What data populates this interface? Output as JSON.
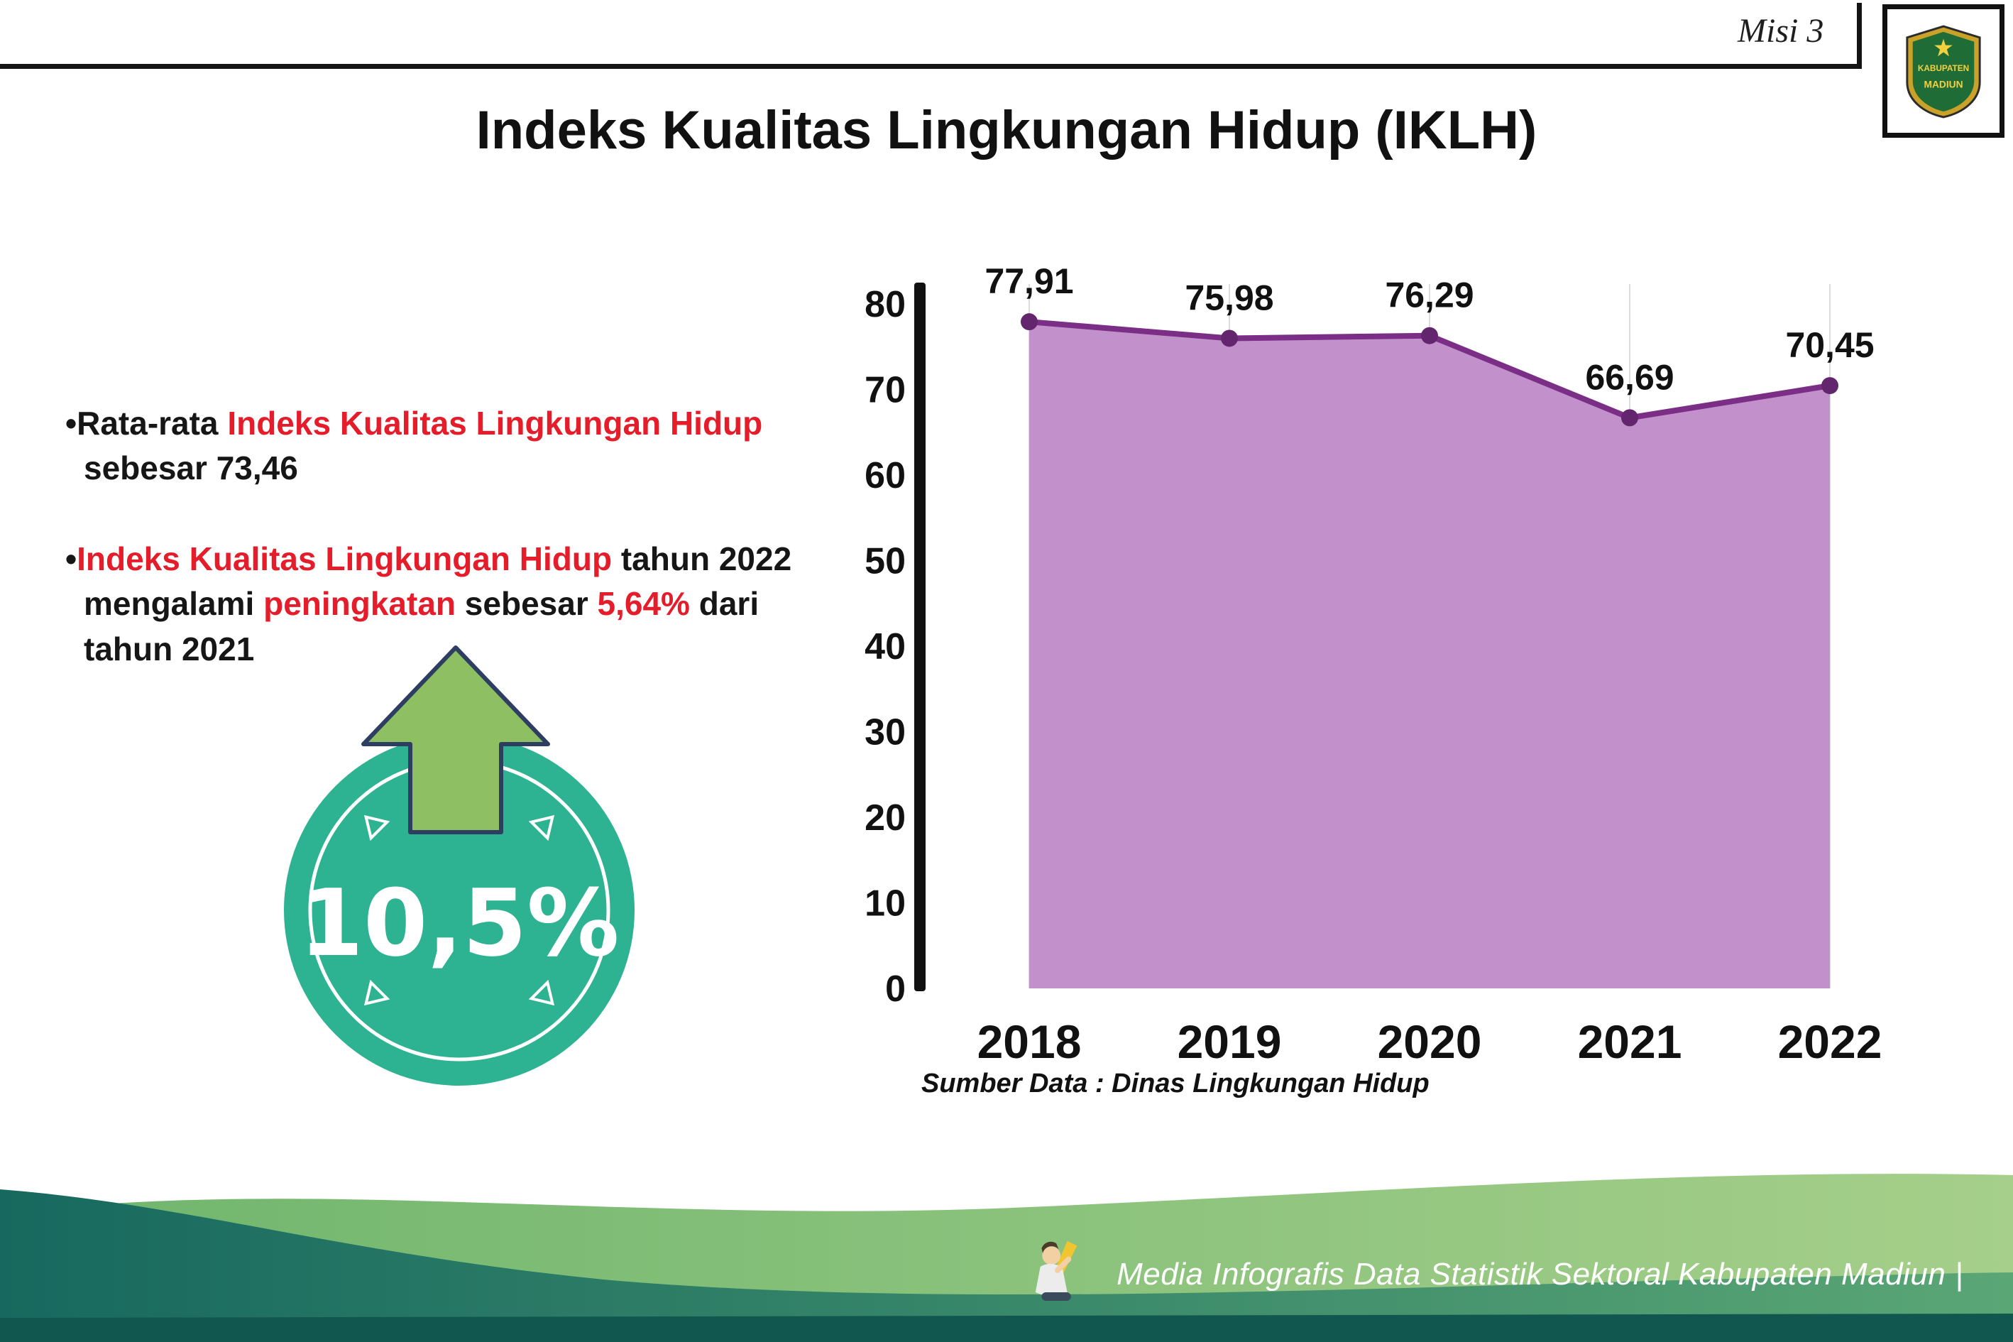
{
  "header": {
    "misi": "Misi 3",
    "title": "Indeks Kualitas Lingkungan Hidup (IKLH)",
    "logo_top": "KABUPATEN",
    "logo_bottom": "MADIUN"
  },
  "bullets": {
    "bullet_char": "•",
    "b1": {
      "t1": "Rata-rata ",
      "h1": "Indeks Kualitas Lingkungan Hidup",
      "t2": "sebesar 73,46"
    },
    "b2": {
      "h1": "Indeks Kualitas Lingkungan Hidup",
      "t1": " tahun 2022",
      "t2": "mengalami ",
      "h2": "peningkatan",
      "t3": " sebesar ",
      "h3": "5,64%",
      "t4": " dari",
      "t5": "tahun 2021"
    }
  },
  "badge": {
    "value": "10,5%"
  },
  "chart_data": {
    "type": "area",
    "title": "Indeks Kualitas Lingkungan Hidup (IKLH)",
    "categories": [
      "2018",
      "2019",
      "2020",
      "2021",
      "2022"
    ],
    "values": [
      77.91,
      75.98,
      76.29,
      66.69,
      70.45
    ],
    "value_labels": [
      "77,91",
      "75,98",
      "76,29",
      "66,69",
      "70,45"
    ],
    "ylim": [
      0,
      80
    ],
    "yticks": [
      0,
      10,
      20,
      30,
      40,
      50,
      60,
      70,
      80
    ],
    "grid": "vertical-light",
    "legend": "none",
    "line_color": "#7b2e86",
    "marker_color": "#63256d",
    "fill_color": "#c291cb",
    "axis_color": "#111111",
    "source": "Sumber Data : Dinas Lingkungan Hidup"
  },
  "footer": {
    "text": "Media Infografis Data Statistik Sektoral Kabupaten Madiun |"
  },
  "colors": {
    "accent_red": "#e51c2a",
    "badge_teal": "#2db392",
    "arrow_green": "#8ec063",
    "chart_line_purple": "#7b2e86",
    "chart_fill_mauve": "#c291cb",
    "footer_green": "#7cb86b",
    "footer_teal": "#1a6a60"
  }
}
